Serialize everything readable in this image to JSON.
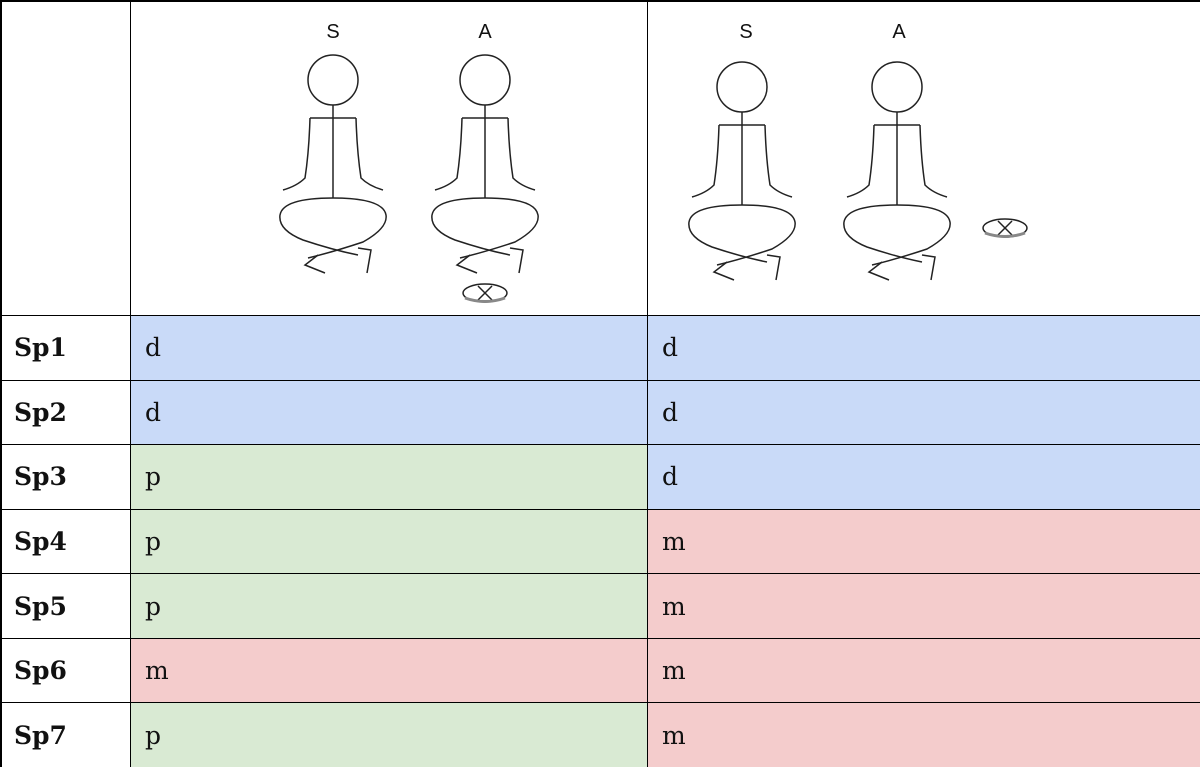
{
  "table": {
    "figures": [
      {
        "labels": [
          "S",
          "A"
        ]
      },
      {
        "labels": [
          "S",
          "A"
        ]
      }
    ],
    "rows": [
      [
        "Sp1",
        "d",
        "d"
      ],
      [
        "Sp2",
        "d",
        "d"
      ],
      [
        "Sp3",
        "p",
        "d"
      ],
      [
        "Sp4",
        "p",
        "m"
      ],
      [
        "Sp5",
        "p",
        "m"
      ],
      [
        "Sp6",
        "m",
        "m"
      ],
      [
        "Sp7",
        "p",
        "m"
      ]
    ],
    "colors": {
      "d": "#c9daf8",
      "p": "#d9ead3",
      "m": "#f4cccc"
    }
  }
}
